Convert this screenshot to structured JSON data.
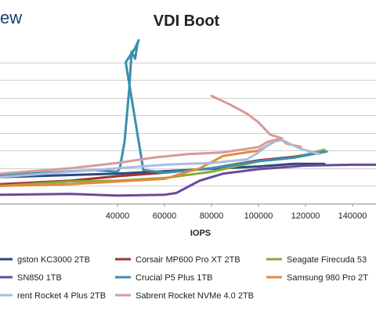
{
  "header": {
    "logo_text": "ew"
  },
  "chart_data": {
    "type": "line",
    "title": "VDI Boot",
    "xlabel": "IOPS",
    "ylabel": "",
    "xlim": [
      -10000,
      150000
    ],
    "ylim": [
      0,
      9
    ],
    "x_ticks": [
      {
        "value": 40000,
        "label": "40000"
      },
      {
        "value": 60000,
        "label": "60000"
      },
      {
        "value": 80000,
        "label": "80000"
      },
      {
        "value": 100000,
        "label": "100000"
      },
      {
        "value": 120000,
        "label": "120000"
      },
      {
        "value": 140000,
        "label": "140000"
      }
    ],
    "y_gridlines": [
      1,
      2,
      3,
      4,
      5,
      6,
      7,
      8
    ],
    "grid": true,
    "legend_position": "bottom",
    "series": [
      {
        "name": "gston KC3000 2TB",
        "color": "#2e4a7d",
        "points": [
          [
            -10000,
            1.5
          ],
          [
            40000,
            1.7
          ],
          [
            70000,
            1.9
          ],
          [
            100000,
            2.1
          ],
          [
            115000,
            2.25
          ],
          [
            128000,
            2.25
          ]
        ]
      },
      {
        "name": "Corsair MP600 Pro XT 2TB",
        "color": "#9e3535",
        "points": [
          [
            -10000,
            1.1
          ],
          [
            20000,
            1.3
          ],
          [
            40000,
            1.55
          ],
          [
            60000,
            1.75
          ],
          [
            80000,
            2.0
          ],
          [
            100000,
            2.45
          ],
          [
            115000,
            2.65
          ],
          [
            128000,
            2.95
          ]
        ]
      },
      {
        "name": "Seagate Firecuda 53",
        "color": "#8aa840",
        "points": [
          [
            -10000,
            1.0
          ],
          [
            20000,
            1.25
          ],
          [
            40000,
            1.3
          ],
          [
            60000,
            1.45
          ],
          [
            80000,
            1.8
          ],
          [
            100000,
            2.4
          ],
          [
            115000,
            2.6
          ],
          [
            128000,
            3.05
          ]
        ]
      },
      {
        "name": "SN850 1TB",
        "color": "#6a4a9c",
        "points": [
          [
            -10000,
            0.5
          ],
          [
            20000,
            0.55
          ],
          [
            40000,
            0.45
          ],
          [
            60000,
            0.5
          ],
          [
            65000,
            0.6
          ],
          [
            75000,
            1.3
          ],
          [
            85000,
            1.7
          ],
          [
            100000,
            1.95
          ],
          [
            120000,
            2.15
          ],
          [
            140000,
            2.2
          ],
          [
            150000,
            2.2
          ]
        ]
      },
      {
        "name": "Crucial P5 Plus 1TB",
        "color": "#3a8fae",
        "points": [
          [
            -10000,
            1.6
          ],
          [
            30000,
            1.9
          ],
          [
            40000,
            1.8
          ],
          [
            41000,
            2.0
          ],
          [
            43000,
            3.5
          ],
          [
            45000,
            6.5
          ],
          [
            46000,
            8.6
          ],
          [
            47500,
            8.2
          ],
          [
            48500,
            9.05
          ],
          [
            49000,
            9.25
          ],
          [
            47500,
            8.8
          ],
          [
            45500,
            8.4
          ],
          [
            43500,
            8.0
          ],
          [
            51000,
            1.9
          ],
          [
            60000,
            1.75
          ],
          [
            80000,
            2.0
          ],
          [
            100000,
            2.4
          ],
          [
            115000,
            2.6
          ],
          [
            129000,
            2.95
          ]
        ]
      },
      {
        "name": "Samsung 980 Pro 2T",
        "color": "#e58a3a",
        "points": [
          [
            -10000,
            1.0
          ],
          [
            20000,
            1.1
          ],
          [
            40000,
            1.25
          ],
          [
            60000,
            1.4
          ],
          [
            75000,
            2.0
          ],
          [
            85000,
            2.7
          ],
          [
            100000,
            3.0
          ],
          [
            106000,
            3.45
          ],
          [
            109000,
            3.7
          ],
          [
            112000,
            3.4
          ],
          [
            118000,
            3.2
          ]
        ]
      },
      {
        "name": "rent Rocket 4 Plus 2TB",
        "color": "#a7bde3",
        "points": [
          [
            -10000,
            1.5
          ],
          [
            20000,
            1.8
          ],
          [
            40000,
            2.0
          ],
          [
            60000,
            2.2
          ],
          [
            80000,
            2.3
          ],
          [
            95000,
            2.5
          ],
          [
            100000,
            2.9
          ],
          [
            106000,
            3.5
          ],
          [
            110000,
            3.6
          ],
          [
            118000,
            3.1
          ],
          [
            126000,
            2.8
          ]
        ]
      },
      {
        "name": "Sabrent Rocket NVMe 4.0 2TB",
        "color": "#d9999a",
        "points": [
          [
            -10000,
            1.7
          ],
          [
            20000,
            2.0
          ],
          [
            40000,
            2.3
          ],
          [
            55000,
            2.6
          ],
          [
            70000,
            2.8
          ],
          [
            85000,
            2.9
          ],
          [
            100000,
            3.2
          ],
          [
            104000,
            3.5
          ],
          [
            110000,
            3.7
          ],
          [
            105000,
            3.9
          ],
          [
            100000,
            4.6
          ],
          [
            95000,
            5.1
          ],
          [
            88000,
            5.6
          ],
          [
            80000,
            6.1
          ]
        ]
      }
    ]
  }
}
